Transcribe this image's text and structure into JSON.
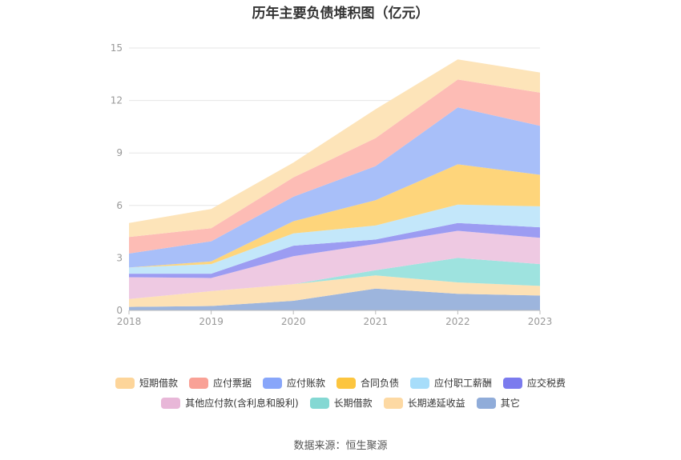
{
  "title": "历年主要负债堆积图（亿元）",
  "source": "数据来源：恒生聚源",
  "chart_data": {
    "type": "area",
    "stacked": true,
    "x": [
      "2018",
      "2019",
      "2020",
      "2021",
      "2022",
      "2023"
    ],
    "ylim": [
      0,
      15
    ],
    "yticks": [
      0,
      3,
      6,
      9,
      12,
      15
    ],
    "grid": true,
    "legend_position": "bottom",
    "series": [
      {
        "name": "其它",
        "color": "#9db5dd",
        "values": [
          0.2,
          0.25,
          0.55,
          1.25,
          0.95,
          0.85
        ]
      },
      {
        "name": "长期递延收益",
        "color": "#fde1b5",
        "values": [
          0.45,
          0.85,
          0.95,
          0.75,
          0.65,
          0.55
        ]
      },
      {
        "name": "长期借款",
        "color": "#9ee3df",
        "values": [
          0.0,
          0.0,
          0.0,
          0.3,
          1.4,
          1.25
        ]
      },
      {
        "name": "其他应付款(含利息和股利)",
        "color": "#eec9e2",
        "values": [
          1.25,
          0.75,
          1.6,
          1.5,
          1.55,
          1.5
        ]
      },
      {
        "name": "应交税费",
        "color": "#9c9cf2",
        "values": [
          0.2,
          0.25,
          0.6,
          0.25,
          0.45,
          0.6
        ]
      },
      {
        "name": "应付职工薪酬",
        "color": "#c3e7fa",
        "values": [
          0.35,
          0.55,
          0.7,
          0.8,
          1.05,
          1.2
        ]
      },
      {
        "name": "合同负债",
        "color": "#fed57b",
        "values": [
          0.0,
          0.15,
          0.7,
          1.45,
          2.3,
          1.8
        ]
      },
      {
        "name": "应付账款",
        "color": "#a8bff9",
        "values": [
          0.8,
          1.15,
          1.4,
          1.95,
          3.25,
          2.8
        ]
      },
      {
        "name": "应付票据",
        "color": "#fdbcb5",
        "values": [
          0.95,
          0.75,
          1.1,
          1.6,
          1.6,
          1.9
        ]
      },
      {
        "name": "短期借款",
        "color": "#fde4b9",
        "values": [
          0.8,
          1.1,
          0.85,
          1.65,
          1.15,
          1.15
        ]
      }
    ]
  },
  "legend": {
    "row1": [
      {
        "label": "短期借款",
        "color": "#fdd59a"
      },
      {
        "label": "应付票据",
        "color": "#f9a196"
      },
      {
        "label": "应付账款",
        "color": "#88a6fa"
      },
      {
        "label": "合同负债",
        "color": "#fcc53f"
      },
      {
        "label": "应付职工薪酬",
        "color": "#a7ddfa"
      },
      {
        "label": "应交税费",
        "color": "#7b7bee"
      }
    ],
    "row2": [
      {
        "label": "其他应付款(含利息和股利)",
        "color": "#e8b7d8"
      },
      {
        "label": "长期借款",
        "color": "#84d8d3"
      },
      {
        "label": "长期递延收益",
        "color": "#fdd9a3"
      },
      {
        "label": "其它",
        "color": "#90acd9"
      }
    ]
  }
}
